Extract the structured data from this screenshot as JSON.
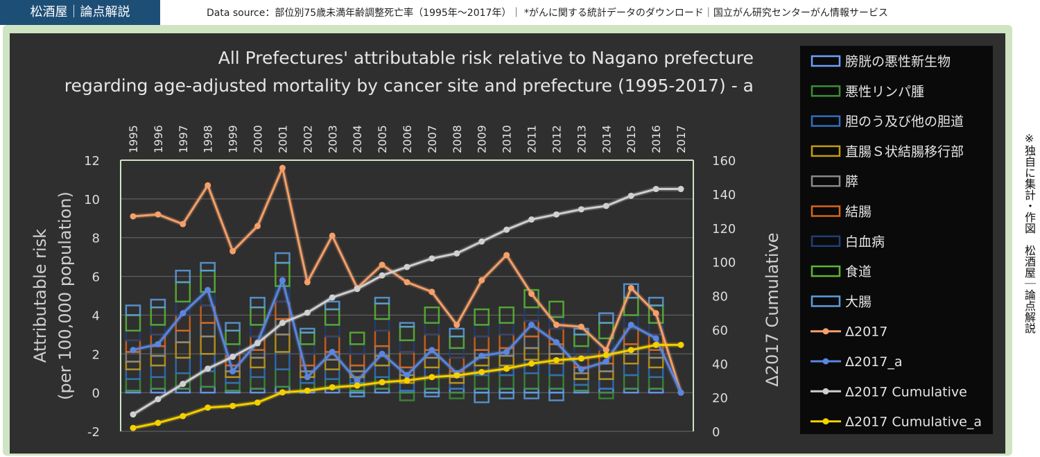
{
  "header": {
    "badge": "松酒屋｜論点解説",
    "source": "Data source：部位別75歳未満年齢調整死亡率（1995年～2017年）｜ *がんに関する統計データのダウンロード｜国立がん研究センターがん情報サービス",
    "side_note": "※独自に集計・作図　松酒屋｜論点解説"
  },
  "colors": {
    "background": "#2f2f2f",
    "frame": "#cfe4c3",
    "badge": "#1d4e76",
    "legend_bg": "#0a0a0a"
  },
  "chart_data": {
    "type": "bar",
    "stacked": true,
    "title_lines": [
      "All Prefectures' attributable risk relative to Nagano prefecture",
      "regarding age-adjusted mortality by cancer site and prefecture (1995-2017) - a"
    ],
    "ylabel_lines": [
      "Attributable risk",
      "(per 100,000 population)"
    ],
    "y2label": "Δ2017 Cumulative",
    "ylim": [
      -2,
      12
    ],
    "yticks": [
      -2,
      0,
      2,
      4,
      6,
      8,
      10,
      12
    ],
    "y2lim": [
      0,
      160
    ],
    "y2ticks": [
      0,
      20,
      40,
      60,
      80,
      100,
      120,
      140,
      160
    ],
    "categories": [
      "1995",
      "1996",
      "1997",
      "1998",
      "1999",
      "2000",
      "2001",
      "2002",
      "2003",
      "2004",
      "2005",
      "2006",
      "2007",
      "2008",
      "2009",
      "2010",
      "2011",
      "2012",
      "2013",
      "2014",
      "2015",
      "2016",
      "2017"
    ],
    "grid": true,
    "legend_position": "right",
    "bar_series": [
      {
        "name": "膀胱の悪性新生物",
        "color": "#6fa0ff",
        "values": [
          0.1,
          0.2,
          0.2,
          0.3,
          0.1,
          0.2,
          0.3,
          0.1,
          0.2,
          0.1,
          0.2,
          0.1,
          0.2,
          0.2,
          0.2,
          0.2,
          0.2,
          0.2,
          0.1,
          0.2,
          0.2,
          0.2,
          0.0
        ]
      },
      {
        "name": "悪性リンパ腫",
        "color": "#3a8f35",
        "values": [
          0.6,
          0.6,
          0.8,
          0.8,
          0.4,
          0.6,
          0.9,
          0.4,
          0.5,
          0.4,
          0.6,
          -0.4,
          0.6,
          -0.3,
          0.7,
          0.7,
          0.8,
          0.7,
          0.3,
          -0.3,
          0.7,
          0.6,
          0.0
        ]
      },
      {
        "name": "胆のう及び他の胆道",
        "color": "#2f6fc2",
        "values": [
          0.5,
          0.6,
          0.8,
          0.9,
          0.3,
          0.5,
          0.9,
          0.3,
          0.5,
          0.3,
          0.6,
          0.4,
          0.5,
          0.3,
          0.5,
          0.5,
          0.7,
          0.6,
          0.3,
          0.5,
          0.6,
          0.5,
          0.0
        ]
      },
      {
        "name": "直腸Ｓ状結腸移行部",
        "color": "#c79a10",
        "values": [
          0.4,
          0.5,
          0.8,
          0.9,
          0.3,
          0.5,
          0.9,
          0.3,
          0.5,
          0.3,
          0.5,
          0.4,
          0.5,
          0.3,
          0.4,
          0.5,
          0.6,
          0.5,
          0.3,
          0.4,
          0.5,
          0.5,
          0.0
        ]
      },
      {
        "name": "膵",
        "color": "#8a8a8a",
        "values": [
          0.5,
          0.5,
          0.6,
          0.7,
          0.3,
          0.4,
          0.8,
          0.3,
          0.4,
          0.3,
          0.5,
          0.4,
          0.4,
          0.3,
          0.4,
          0.4,
          0.6,
          0.5,
          0.3,
          0.4,
          0.5,
          0.4,
          0.0
        ]
      },
      {
        "name": "結腸",
        "color": "#d9651a",
        "values": [
          0.6,
          0.6,
          0.8,
          0.9,
          0.6,
          0.7,
          0.9,
          0.6,
          0.8,
          0.6,
          0.8,
          0.8,
          0.8,
          0.7,
          0.7,
          0.7,
          0.8,
          0.8,
          0.6,
          0.7,
          0.8,
          0.8,
          0.0
        ]
      },
      {
        "name": "白血病",
        "color": "#1f3e7a",
        "values": [
          0.5,
          0.5,
          0.7,
          0.7,
          0.5,
          0.6,
          0.8,
          0.5,
          0.6,
          0.5,
          0.6,
          0.6,
          0.6,
          0.5,
          0.6,
          0.6,
          0.7,
          0.6,
          0.5,
          0.6,
          0.7,
          0.6,
          0.0
        ]
      },
      {
        "name": "食道",
        "color": "#5cb832",
        "values": [
          0.8,
          0.9,
          1.0,
          1.1,
          0.7,
          0.9,
          1.2,
          0.6,
          0.8,
          0.6,
          0.8,
          0.7,
          0.8,
          0.6,
          0.8,
          0.8,
          0.9,
          0.8,
          0.6,
          0.8,
          0.9,
          0.9,
          0.0
        ]
      },
      {
        "name": "大腸",
        "color": "#5a9fe0",
        "values": [
          0.5,
          0.4,
          0.6,
          0.4,
          0.4,
          0.5,
          0.5,
          0.2,
          0.4,
          -0.2,
          0.3,
          0.2,
          -0.2,
          0.4,
          -0.5,
          -0.3,
          -0.3,
          -0.4,
          0.3,
          0.5,
          0.7,
          0.4,
          0.0
        ]
      }
    ],
    "line_series": [
      {
        "name": "Δ2017",
        "axis": "left",
        "color": "#f4a06a",
        "values": [
          9.1,
          9.2,
          8.7,
          10.7,
          7.3,
          8.6,
          11.6,
          5.7,
          8.1,
          5.4,
          6.6,
          5.7,
          5.2,
          3.5,
          5.8,
          7.1,
          5.1,
          3.5,
          3.4,
          2.2,
          5.4,
          4.1,
          0.0
        ]
      },
      {
        "name": "Δ2017_a",
        "axis": "left",
        "color": "#5b86e0",
        "values": [
          2.2,
          2.5,
          4.1,
          5.3,
          1.1,
          2.6,
          5.8,
          0.8,
          2.1,
          0.6,
          2.0,
          0.9,
          2.2,
          1.0,
          1.9,
          2.1,
          3.5,
          2.6,
          1.2,
          1.6,
          3.5,
          2.8,
          0.0
        ]
      },
      {
        "name": "Δ2017 Cumulative",
        "axis": "right",
        "color": "#d0d0d0",
        "values": [
          10,
          19,
          28,
          37,
          44,
          52,
          64,
          70,
          79,
          84,
          92,
          97,
          102,
          105,
          112,
          119,
          125,
          128,
          131,
          133,
          139,
          143,
          143
        ]
      },
      {
        "name": "Δ2017 Cumulative_a",
        "axis": "right",
        "color": "#f5d000",
        "values": [
          2,
          5,
          9,
          14,
          15,
          17,
          23,
          24,
          26,
          27,
          29,
          30,
          32,
          33,
          35,
          37,
          40,
          42,
          43,
          45,
          48,
          51,
          51
        ]
      }
    ]
  }
}
